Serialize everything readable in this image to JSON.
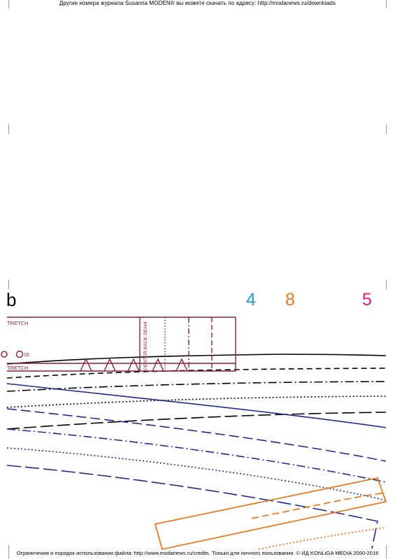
{
  "header": {
    "text": "Другие номера журнала Susanna MODEN® вы можете скачать по адресу: http://modanews.ru/downloads"
  },
  "footer": {
    "text": "Ограничения и порядок использования файла: http://www.modanews.ru/credits. Только для личного пользования. © ИД KONLIGA MEDIA 2000-2016"
  },
  "sheet": {
    "letter": "b"
  },
  "sizes": [
    {
      "label": "4",
      "color": "#1f9ad6"
    },
    {
      "label": "8",
      "color": "#ec7a1c"
    },
    {
      "label": "5",
      "color": "#e2197a"
    }
  ],
  "pattern": {
    "stretch_top": "TRETCH",
    "stretch_bottom": "TRETCH",
    "center_back_seam": "CENTER BACK SEAM",
    "size_marker": "16",
    "colors": {
      "maroon": "#8b1c3f",
      "navy": "#1e2a8a",
      "orange": "#ec7a1c",
      "black": "#000000"
    }
  }
}
